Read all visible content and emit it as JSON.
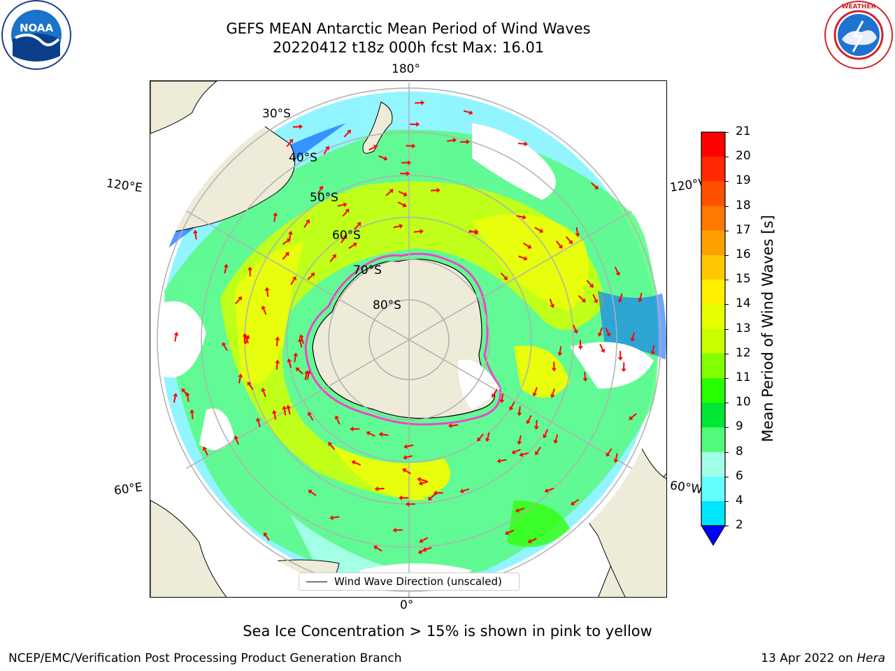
{
  "header": {
    "title_line1": "GEFS MEAN Antarctic Mean Period of Wind Waves",
    "title_line2": "20220412 t18z 000h fcst   Max: 16.01"
  },
  "logos": {
    "noaa_text": "NOAA",
    "noaa_ring": "NATIONAL OCEANIC AND ATMOSPHERIC ADMINISTRATION · U.S. DEPARTMENT OF COMMERCE",
    "nws_ring": "NATIONAL WEATHER SERVICE"
  },
  "map": {
    "lon_labels": {
      "top": "180°",
      "bottom": "0°",
      "upper_left": "120°E",
      "upper_right": "120°W",
      "lower_left": "60°E",
      "lower_right": "60°W"
    },
    "lat_labels": [
      "30°S",
      "40°S",
      "50°S",
      "60°S",
      "70°S",
      "80°S"
    ],
    "legend_label": "Wind Wave Direction (unscaled)",
    "arrow_color": "#ff0000",
    "land_color": "#eeebd9",
    "sea_ice_edge_color": "#ee44cc"
  },
  "colorbar": {
    "label": "Mean Period of Wind Waves [s]",
    "ticks": [
      "21",
      "20",
      "19",
      "18",
      "17",
      "16",
      "15",
      "14",
      "13",
      "12",
      "11",
      "10",
      "9",
      "8",
      "6",
      "4",
      "2"
    ],
    "colors": [
      "#ff0000",
      "#ff2800",
      "#ff5000",
      "#ff7800",
      "#ffa000",
      "#ffc800",
      "#fff000",
      "#e6ff00",
      "#c8ff00",
      "#82ff00",
      "#28ff00",
      "#00e632",
      "#50fa7a",
      "#a0ffe6",
      "#64ffff",
      "#00e6ff",
      "#00aaff",
      "#0064ff"
    ],
    "extend_color": "#0000ff"
  },
  "footer": {
    "note": "Sea Ice Concentration > 15% is shown in pink to yellow",
    "left": "NCEP/EMC/Verification Post Processing Product Generation Branch",
    "right_prefix": "13 Apr 2022 on ",
    "right_host": "Hera"
  }
}
